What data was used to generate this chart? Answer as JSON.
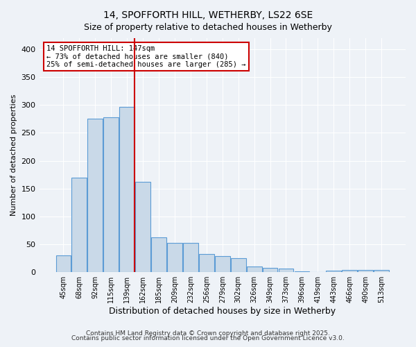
{
  "title1": "14, SPOFFORTH HILL, WETHERBY, LS22 6SE",
  "title2": "Size of property relative to detached houses in Wetherby",
  "xlabel": "Distribution of detached houses by size in Wetherby",
  "ylabel": "Number of detached properties",
  "categories": [
    "45sqm",
    "68sqm",
    "92sqm",
    "115sqm",
    "139sqm",
    "162sqm",
    "185sqm",
    "209sqm",
    "232sqm",
    "256sqm",
    "279sqm",
    "302sqm",
    "326sqm",
    "349sqm",
    "373sqm",
    "396sqm",
    "419sqm",
    "443sqm",
    "466sqm",
    "490sqm",
    "513sqm"
  ],
  "values": [
    30,
    170,
    275,
    278,
    297,
    162,
    62,
    52,
    52,
    33,
    29,
    25,
    10,
    8,
    6,
    2,
    0,
    3,
    4,
    4,
    4
  ],
  "bar_color": "#c9d9e8",
  "bar_edge_color": "#5b9bd5",
  "property_bin_index": 4,
  "annotation_line1": "14 SPOFFORTH HILL: 147sqm",
  "annotation_line2": "← 73% of detached houses are smaller (840)",
  "annotation_line3": "25% of semi-detached houses are larger (285) →",
  "annotation_box_color": "#ffffff",
  "annotation_box_edge_color": "#cc0000",
  "ylim": [
    0,
    420
  ],
  "yticks": [
    0,
    50,
    100,
    150,
    200,
    250,
    300,
    350,
    400
  ],
  "footer1": "Contains HM Land Registry data © Crown copyright and database right 2025.",
  "footer2": "Contains public sector information licensed under the Open Government Licence v3.0.",
  "background_color": "#eef2f7",
  "plot_background_color": "#eef2f7",
  "grid_color": "#ffffff",
  "vline_color": "#cc0000"
}
